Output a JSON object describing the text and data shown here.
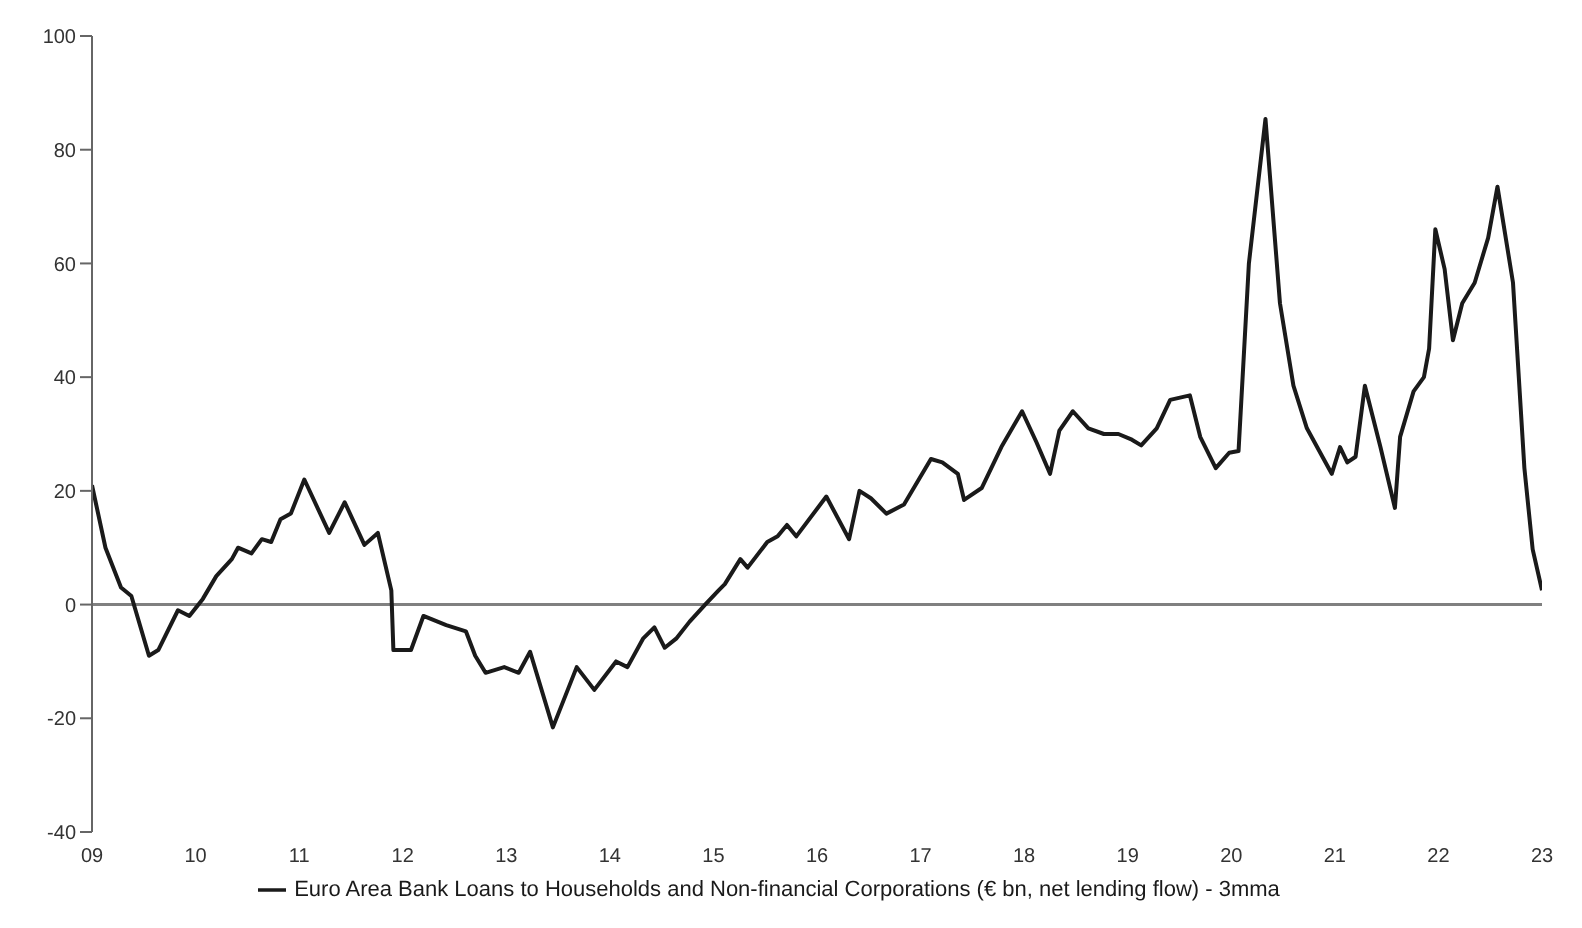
{
  "chart_data": {
    "type": "line",
    "x": [
      2009.0,
      2009.13,
      2009.28,
      2009.38,
      2009.55,
      2009.64,
      2009.83,
      2009.94,
      2010.07,
      2010.2,
      2010.35,
      2010.41,
      2010.54,
      2010.64,
      2010.73,
      2010.82,
      2010.92,
      2011.05,
      2011.29,
      2011.44,
      2011.63,
      2011.76,
      2011.89,
      2011.91,
      2012.08,
      2012.2,
      2012.42,
      2012.61,
      2012.7,
      2012.8,
      2012.98,
      2013.12,
      2013.23,
      2013.45,
      2013.68,
      2013.85,
      2014.06,
      2014.17,
      2014.32,
      2014.43,
      2014.53,
      2014.64,
      2014.77,
      2014.92,
      2015.05,
      2015.11,
      2015.26,
      2015.33,
      2015.52,
      2015.62,
      2015.71,
      2015.8,
      2016.09,
      2016.31,
      2016.41,
      2016.52,
      2016.67,
      2016.84,
      2017.1,
      2017.21,
      2017.36,
      2017.42,
      2017.59,
      2017.78,
      2017.98,
      2018.12,
      2018.25,
      2018.34,
      2018.47,
      2018.62,
      2018.77,
      2018.91,
      2019.04,
      2019.13,
      2019.28,
      2019.41,
      2019.6,
      2019.7,
      2019.85,
      2019.98,
      2020.07,
      2020.17,
      2020.33,
      2020.47,
      2020.6,
      2020.73,
      2020.88,
      2020.97,
      2021.05,
      2021.12,
      2021.2,
      2021.29,
      2021.44,
      2021.58,
      2021.63,
      2021.76,
      2021.86,
      2021.91,
      2021.97,
      2022.06,
      2022.14,
      2022.23,
      2022.35,
      2022.48,
      2022.57,
      2022.72,
      2022.83,
      2022.91,
      2023.0
    ],
    "series": [
      {
        "name": "Euro Area Bank Loans to Households and Non-financial Corporations (€ bn, net lending flow) - 3mma",
        "color": "#1a1a1a",
        "values": [
          21,
          10,
          3,
          1.5,
          -9,
          -8,
          -1,
          -2,
          1,
          5,
          8,
          10,
          9,
          11.5,
          11,
          15,
          16,
          22,
          12.6,
          18,
          10.5,
          12.6,
          2.5,
          -8,
          -8,
          -2,
          -3.6,
          -4.7,
          -9,
          -12,
          -11,
          -12,
          -8.3,
          -21.6,
          -11,
          -15,
          -10,
          -11,
          -6,
          -4,
          -7.6,
          -6,
          -3,
          0,
          2.5,
          3.6,
          8,
          6.5,
          11,
          12,
          14,
          12,
          19,
          11.5,
          20,
          18.7,
          16,
          17.6,
          25.6,
          25,
          23,
          18.4,
          20.5,
          27.7,
          34,
          28.5,
          23,
          30.6,
          34,
          31,
          30,
          30,
          29,
          28,
          31,
          36,
          36.8,
          29.5,
          24,
          26.7,
          27,
          60,
          85.4,
          53,
          38.5,
          31,
          26,
          23,
          27.7,
          25,
          26,
          38.5,
          27.7,
          17,
          29.5,
          37.5,
          40,
          45,
          66,
          59,
          46.5,
          53,
          56.6,
          64.5,
          73.5,
          56.6,
          24,
          9.7,
          2.5
        ]
      }
    ],
    "xlim": [
      2009,
      2023
    ],
    "xticks": [
      {
        "value": 2009,
        "label": "09"
      },
      {
        "value": 2010,
        "label": "10"
      },
      {
        "value": 2011,
        "label": "11"
      },
      {
        "value": 2012,
        "label": "12"
      },
      {
        "value": 2013,
        "label": "13"
      },
      {
        "value": 2014,
        "label": "14"
      },
      {
        "value": 2015,
        "label": "15"
      },
      {
        "value": 2016,
        "label": "16"
      },
      {
        "value": 2017,
        "label": "17"
      },
      {
        "value": 2018,
        "label": "18"
      },
      {
        "value": 2019,
        "label": "19"
      },
      {
        "value": 2020,
        "label": "20"
      },
      {
        "value": 2021,
        "label": "21"
      },
      {
        "value": 2022,
        "label": "22"
      },
      {
        "value": 2023,
        "label": "23"
      }
    ],
    "ylim": [
      -40,
      100
    ],
    "yticks": [
      -40,
      -20,
      0,
      20,
      40,
      60,
      80,
      100
    ],
    "ref_lines": [
      {
        "axis": "y",
        "value": 0,
        "color": "#808080"
      }
    ],
    "grid": false,
    "legend": "bottom",
    "marker": "none",
    "line_style": "solid"
  }
}
